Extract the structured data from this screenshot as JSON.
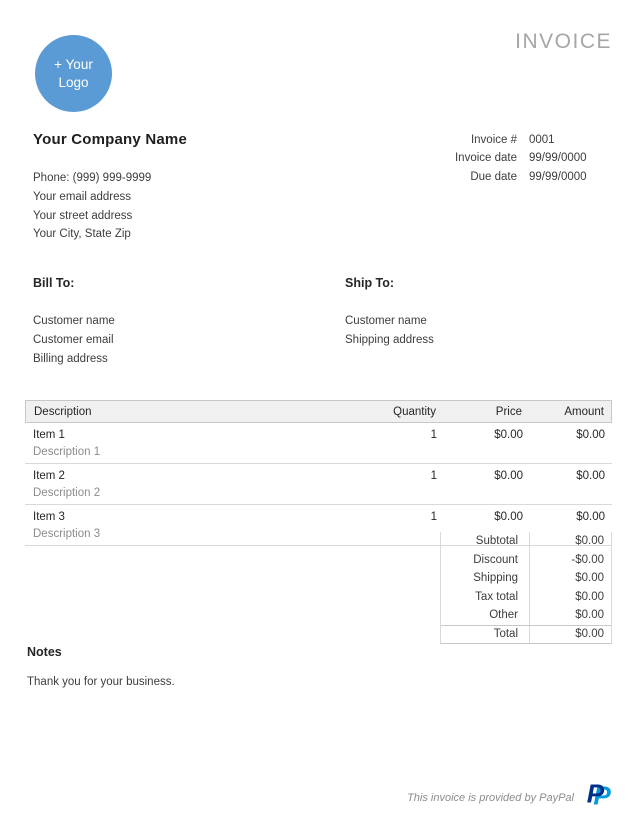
{
  "header": {
    "title": "INVOICE"
  },
  "logo": {
    "line1": "+ Your",
    "line2": "Logo"
  },
  "company": {
    "name": "Your Company Name",
    "lines": [
      "Phone: (999) 999-9999",
      "Your email address",
      "Your street address",
      "Your City, State Zip"
    ]
  },
  "meta": {
    "rows": [
      {
        "label": "Invoice #",
        "value": "0001"
      },
      {
        "label": "Invoice date",
        "value": "99/99/0000"
      },
      {
        "label": "Due date",
        "value": "99/99/0000"
      }
    ]
  },
  "bill_to": {
    "heading": "Bill To:",
    "lines": [
      "Customer name",
      "Customer email",
      "Billing address"
    ]
  },
  "ship_to": {
    "heading": "Ship To:",
    "lines": [
      "Customer name",
      "Shipping address"
    ]
  },
  "items_table": {
    "headers": {
      "description": "Description",
      "quantity": "Quantity",
      "price": "Price",
      "amount": "Amount"
    },
    "rows": [
      {
        "name": "Item 1",
        "description": "Description 1",
        "quantity": "1",
        "price": "$0.00",
        "amount": "$0.00"
      },
      {
        "name": "Item 2",
        "description": "Description 2",
        "quantity": "1",
        "price": "$0.00",
        "amount": "$0.00"
      },
      {
        "name": "Item 3",
        "description": "Description 3",
        "quantity": "1",
        "price": "$0.00",
        "amount": "$0.00"
      }
    ]
  },
  "totals": {
    "rows": [
      {
        "label": "Subtotal",
        "value": "$0.00"
      },
      {
        "label": "Discount",
        "value": "-$0.00"
      },
      {
        "label": "Shipping",
        "value": "$0.00"
      },
      {
        "label": "Tax total",
        "value": "$0.00"
      },
      {
        "label": "Other",
        "value": "$0.00"
      }
    ],
    "total": {
      "label": "Total",
      "value": "$0.00"
    }
  },
  "notes": {
    "heading": "Notes",
    "text": "Thank you for your business."
  },
  "footer": {
    "text": "This invoice is provided by PayPal"
  },
  "colors": {
    "logo_blue": "#5b9bd5",
    "title_gray": "#a6a6a6",
    "muted_text": "#8c8c8c",
    "paypal_navy": "#003087",
    "paypal_light_blue": "#009cde"
  }
}
